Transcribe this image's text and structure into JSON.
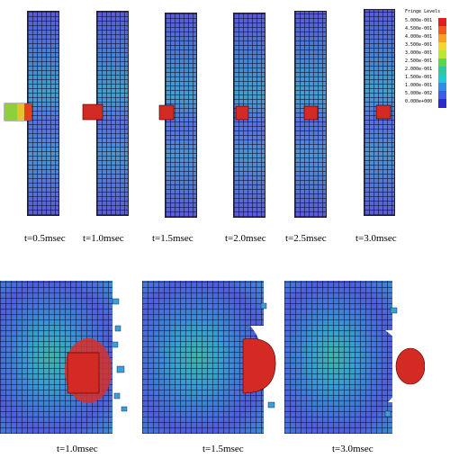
{
  "legend": {
    "title": "Fringe Levels",
    "levels": [
      {
        "value": "5.000e-001",
        "color": "#e02020"
      },
      {
        "value": "4.500e-001",
        "color": "#f05a1e"
      },
      {
        "value": "4.000e-001",
        "color": "#f8a020"
      },
      {
        "value": "3.500e-001",
        "color": "#f2d82a"
      },
      {
        "value": "3.000e-001",
        "color": "#b8e830"
      },
      {
        "value": "2.500e-001",
        "color": "#56d84a"
      },
      {
        "value": "2.000e-001",
        "color": "#2ec8a0"
      },
      {
        "value": "1.500e-001",
        "color": "#1ec8d8"
      },
      {
        "value": "1.000e-001",
        "color": "#2f8fe8"
      },
      {
        "value": "5.000e-002",
        "color": "#3d5ce8"
      },
      {
        "value": "0.000e+000",
        "color": "#2a2ad0"
      }
    ]
  },
  "top_labels": [
    "t=0.5msec",
    "t=1.0msec",
    "t=1.5msec",
    "t=2.0msec",
    "t=2.5msec",
    "t=3.0msec"
  ],
  "bottom_labels": [
    "t=1.0msec",
    "t=1.5msec",
    "t=3.0msec"
  ]
}
